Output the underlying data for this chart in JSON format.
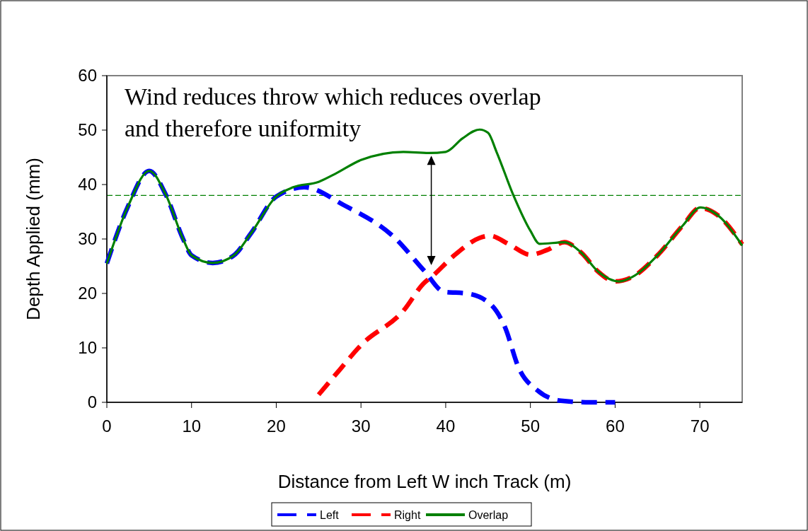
{
  "chart_data": {
    "type": "line",
    "xlabel": "Distance from Left W inch Track (m)",
    "ylabel": "Depth Applied (mm)",
    "xlim": [
      0,
      75
    ],
    "ylim": [
      0,
      60
    ],
    "xticks": [
      0,
      10,
      20,
      30,
      40,
      50,
      60,
      70
    ],
    "yticks": [
      0,
      10,
      20,
      30,
      40,
      50,
      60
    ],
    "grid": false,
    "legend": "bottom",
    "annotations": [
      "Wind reduces throw which reduces overlap and therefore uniformity"
    ],
    "ref_lines": [
      {
        "axis": "y",
        "value": 38,
        "color": "#008000",
        "line_style": "dashed"
      }
    ],
    "series": [
      {
        "name": "Left",
        "color": "#0000ff",
        "line_style": "dashed",
        "x": [
          0,
          2.5,
          5,
          7,
          9,
          10,
          12.5,
          15,
          17,
          20,
          23.3,
          28,
          34,
          37.5,
          39.8,
          42.5,
          45.3,
          47,
          48.6,
          50.9,
          53.6,
          57,
          60
        ],
        "values": [
          25.5,
          36,
          42.5,
          38,
          30,
          27,
          25.6,
          27,
          31,
          37.8,
          39.5,
          36.2,
          30.2,
          24.1,
          20.3,
          20,
          18,
          13.8,
          6.4,
          2.1,
          0.3,
          0,
          0
        ]
      },
      {
        "name": "Right",
        "color": "#ff0000",
        "line_style": "dashed",
        "x": [
          25,
          27.5,
          30,
          35,
          37.5,
          38.3,
          41.1,
          44,
          45.2,
          47.5,
          50,
          52,
          54,
          56,
          58,
          60,
          62,
          65,
          68,
          70,
          72,
          75
        ],
        "values": [
          1.4,
          6,
          10.5,
          16.8,
          22,
          23,
          27.1,
          30.2,
          30.6,
          29,
          27.1,
          28,
          29.4,
          27.5,
          24,
          22.2,
          23,
          27,
          32.5,
          35.7,
          34.5,
          29
        ]
      },
      {
        "name": "Overlap",
        "color": "#008000",
        "line_style": "solid",
        "x": [
          0,
          2.5,
          5,
          7,
          9,
          10,
          12.5,
          15,
          17,
          20,
          22,
          25,
          27,
          30,
          35,
          38,
          40,
          42,
          44,
          45,
          46,
          48,
          50,
          51.1,
          54,
          56,
          58,
          60.5,
          62,
          65,
          68,
          70.1,
          72,
          75
        ],
        "values": [
          25.5,
          36,
          42.5,
          38,
          30,
          27,
          25.6,
          27,
          31,
          37.8,
          39.5,
          40.5,
          42,
          44.5,
          46,
          45.8,
          46,
          48.5,
          50.1,
          49.5,
          46,
          38,
          31.5,
          29.1,
          29.4,
          27.5,
          24,
          22.2,
          23,
          27,
          32.5,
          35.8,
          34.5,
          28.8
        ]
      }
    ]
  }
}
